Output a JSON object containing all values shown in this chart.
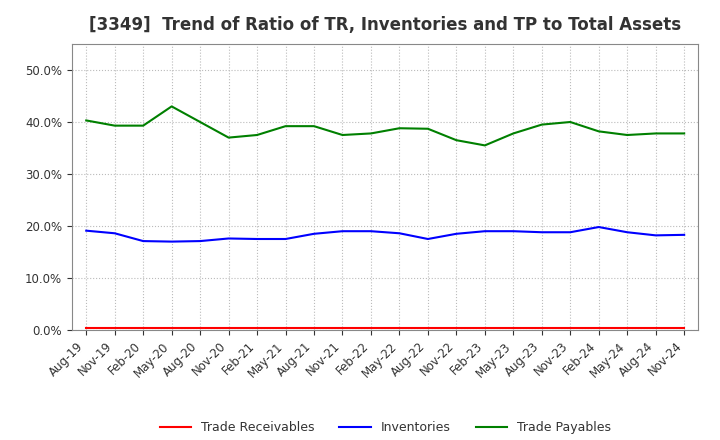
{
  "title": "[3349]  Trend of Ratio of TR, Inventories and TP to Total Assets",
  "x_labels": [
    "Aug-19",
    "Nov-19",
    "Feb-20",
    "May-20",
    "Aug-20",
    "Nov-20",
    "Feb-21",
    "May-21",
    "Aug-21",
    "Nov-21",
    "Feb-22",
    "May-22",
    "Aug-22",
    "Nov-22",
    "Feb-23",
    "May-23",
    "Aug-23",
    "Nov-23",
    "Feb-24",
    "May-24",
    "Aug-24",
    "Nov-24"
  ],
  "trade_receivables": [
    0.003,
    0.003,
    0.003,
    0.003,
    0.003,
    0.003,
    0.003,
    0.003,
    0.003,
    0.003,
    0.003,
    0.003,
    0.003,
    0.003,
    0.003,
    0.003,
    0.003,
    0.003,
    0.003,
    0.003,
    0.003,
    0.003
  ],
  "inventories": [
    0.191,
    0.186,
    0.171,
    0.17,
    0.171,
    0.176,
    0.175,
    0.175,
    0.185,
    0.19,
    0.19,
    0.186,
    0.175,
    0.185,
    0.19,
    0.19,
    0.188,
    0.188,
    0.198,
    0.188,
    0.182,
    0.183
  ],
  "trade_payables": [
    0.403,
    0.393,
    0.393,
    0.43,
    0.4,
    0.37,
    0.375,
    0.392,
    0.392,
    0.375,
    0.378,
    0.388,
    0.387,
    0.365,
    0.355,
    0.378,
    0.395,
    0.4,
    0.382,
    0.375,
    0.378,
    0.378
  ],
  "tr_color": "#FF0000",
  "inv_color": "#0000FF",
  "tp_color": "#008000",
  "background_color": "#FFFFFF",
  "plot_bg_color": "#FFFFFF",
  "ylim": [
    0.0,
    0.55
  ],
  "yticks": [
    0.0,
    0.1,
    0.2,
    0.3,
    0.4,
    0.5
  ],
  "grid_color": "#BBBBBB",
  "legend_labels": [
    "Trade Receivables",
    "Inventories",
    "Trade Payables"
  ],
  "text_color": "#333333",
  "line_width": 1.5,
  "title_fontsize": 12,
  "tick_fontsize": 8.5,
  "legend_fontsize": 9
}
